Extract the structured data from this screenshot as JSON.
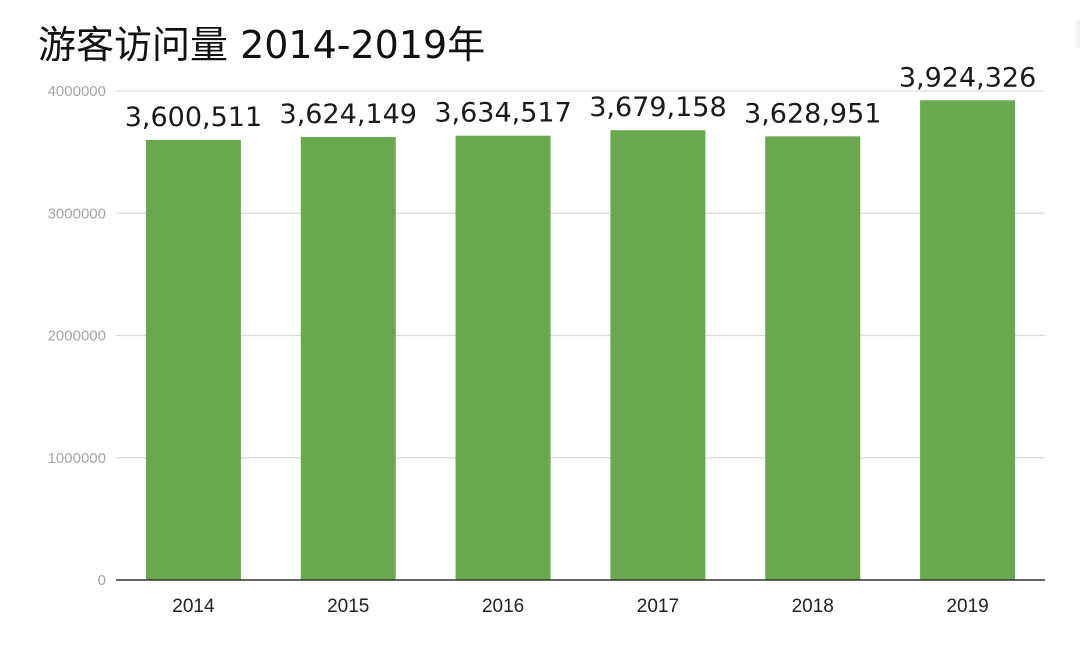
{
  "title": "游客访问量 2014-2019年",
  "colors": {
    "bar": "#6aa84f",
    "grid": "#d9d9d9",
    "axis": "#333333"
  },
  "chart_data": {
    "type": "bar",
    "title": "游客访问量 2014-2019年",
    "xlabel": "",
    "ylabel": "",
    "categories": [
      "2014",
      "2015",
      "2016",
      "2017",
      "2018",
      "2019"
    ],
    "values": [
      3600511,
      3624149,
      3634517,
      3679158,
      3628951,
      3924326
    ],
    "value_labels": [
      "3,600,511",
      "3,624,149",
      "3,634,517",
      "3,679,158",
      "3,628,951",
      "3,924,326"
    ],
    "ylim": [
      0,
      4000000
    ],
    "yticks": [
      0,
      1000000,
      2000000,
      3000000,
      4000000
    ],
    "ytick_labels": [
      "0",
      "1000000",
      "2000000",
      "3000000",
      "4000000"
    ],
    "grid": true,
    "legend": "none"
  }
}
